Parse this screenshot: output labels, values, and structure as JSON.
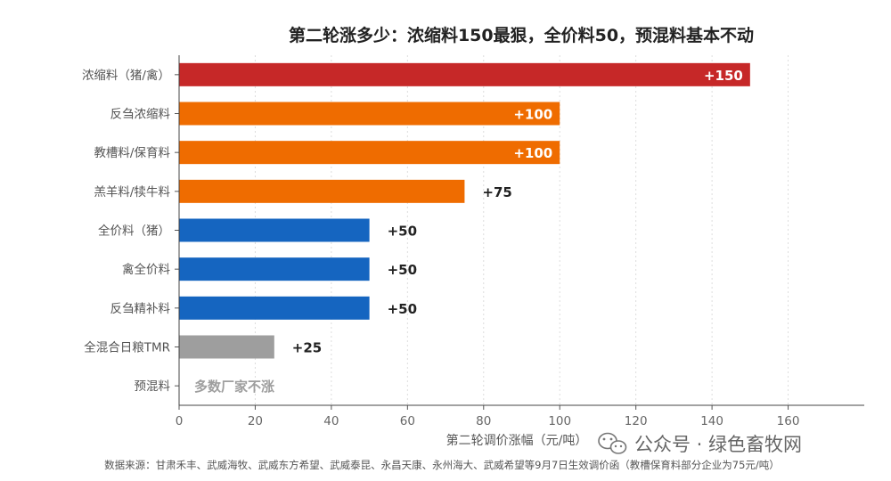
{
  "chart_data": {
    "type": "bar",
    "orientation": "horizontal",
    "title": "第二轮涨多少：浓缩料150最狠，全价料50，预混料基本不动",
    "xlabel": "第二轮调价涨幅（元/吨）",
    "ylabel": "",
    "xlim": [
      0,
      180
    ],
    "xticks": [
      0,
      20,
      40,
      60,
      80,
      100,
      120,
      140,
      160
    ],
    "grid": "vertical-dotted",
    "categories": [
      "浓缩料（猪/禽）",
      "反刍浓缩料",
      "教槽料/保育料",
      "羔羊料/犊牛料",
      "全价料（猪）",
      "禽全价料",
      "反刍精补料",
      "全混合日粮TMR",
      "预混料"
    ],
    "values": [
      150,
      100,
      100,
      75,
      50,
      50,
      50,
      25,
      0
    ],
    "labels": [
      "+150",
      "+100",
      "+100",
      "+75",
      "+50",
      "+50",
      "+50",
      "+25",
      "多数厂家不涨"
    ],
    "colors": [
      "#c62828",
      "#ef6c00",
      "#ef6c00",
      "#ef6c00",
      "#1565c0",
      "#1565c0",
      "#1565c0",
      "#9e9e9e",
      "#9e9e9e"
    ]
  },
  "footer": {
    "source": "数据来源：甘肃禾丰、武威海牧、武威东方希望、武威泰昆、永昌天康、永州海大、武威希望等9月7日生效调价函（教槽保育料部分企业为75元/吨）",
    "watermark": "公众号 · 绿色畜牧网",
    "watermark_icon": "wechat-icon"
  }
}
